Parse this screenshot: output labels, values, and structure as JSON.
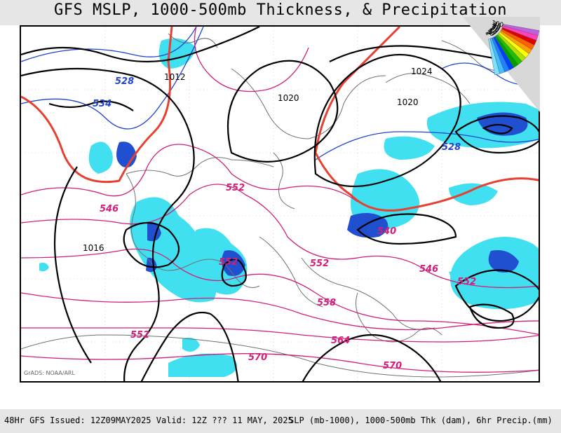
{
  "title": "GFS MSLP, 1000-500mb Thickness, & Precipitation",
  "credit": "GrADS: NOAA/ARL",
  "footer": {
    "run_info": "48Hr GFS Issued: 12Z09MAY2025 Valid: 12Z ??? 11 MAY, 2025",
    "params": "SLP (mb-1000), 1000-500mb Thk (dam), 6hr Precip.(mm)"
  },
  "legend": {
    "labels": [
      "100",
      "75",
      "60",
      "50",
      "40",
      "30",
      "25",
      "20",
      "15",
      "10",
      "5",
      "2",
      "1"
    ],
    "colors": [
      "#c060e0",
      "#ff40c0",
      "#e00000",
      "#ff6000",
      "#ffa000",
      "#ffff00",
      "#b0e000",
      "#20c000",
      "#00a000",
      "#0040ff",
      "#2080ff",
      "#40c0ff",
      "#80e0ff"
    ]
  },
  "colors": {
    "slp_isobar": "#000000",
    "thickness_line": "#d0207a",
    "thickness_cold": "#2244cc",
    "thickness_540": "#e84030",
    "precip_light": "#40e0f0",
    "precip_heavy": "#2050d0",
    "coast": "#707070"
  },
  "isobar_labels": [
    "1012",
    "1020",
    "1024",
    "1020",
    "1016"
  ],
  "thickness_labels": {
    "blue": [
      "528",
      "534",
      "528"
    ],
    "red": [
      "546",
      "552",
      "552",
      "546",
      "552",
      "558",
      "552",
      "564",
      "570",
      "570",
      "540",
      "552"
    ]
  }
}
